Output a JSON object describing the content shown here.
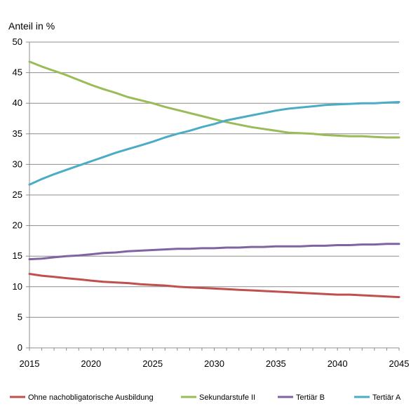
{
  "chart_data": {
    "type": "line",
    "title": "",
    "xlabel": "",
    "ylabel": "Anteil in %",
    "xlim": [
      2015,
      2045
    ],
    "ylim": [
      0,
      50
    ],
    "x_ticks": [
      2015,
      2020,
      2025,
      2030,
      2035,
      2040,
      2045
    ],
    "y_ticks": [
      0,
      5,
      10,
      15,
      20,
      25,
      30,
      35,
      40,
      45,
      50
    ],
    "grid": "horizontal",
    "legend_position": "bottom",
    "x": [
      2015,
      2016,
      2017,
      2018,
      2019,
      2020,
      2021,
      2022,
      2023,
      2024,
      2025,
      2026,
      2027,
      2028,
      2029,
      2030,
      2031,
      2032,
      2033,
      2034,
      2035,
      2036,
      2037,
      2038,
      2039,
      2040,
      2041,
      2042,
      2043,
      2044,
      2045
    ],
    "series": [
      {
        "name": "Ohne nachobligatorische Ausbildung",
        "color": "#c0504d",
        "values": [
          12.1,
          11.8,
          11.6,
          11.4,
          11.2,
          11.0,
          10.8,
          10.7,
          10.6,
          10.4,
          10.3,
          10.2,
          10.0,
          9.9,
          9.8,
          9.7,
          9.6,
          9.5,
          9.4,
          9.3,
          9.2,
          9.1,
          9.0,
          8.9,
          8.8,
          8.7,
          8.7,
          8.6,
          8.5,
          8.4,
          8.3
        ]
      },
      {
        "name": "Sekundarstufe II",
        "color": "#9bbb59",
        "values": [
          46.8,
          46.0,
          45.3,
          44.6,
          43.8,
          43.0,
          42.3,
          41.7,
          41.0,
          40.5,
          40.0,
          39.4,
          38.9,
          38.4,
          37.9,
          37.4,
          36.9,
          36.5,
          36.1,
          35.8,
          35.5,
          35.2,
          35.1,
          35.0,
          34.8,
          34.7,
          34.6,
          34.6,
          34.5,
          34.4,
          34.4
        ]
      },
      {
        "name": "Tertiär B",
        "color": "#8064a2",
        "values": [
          14.5,
          14.6,
          14.8,
          15.0,
          15.1,
          15.3,
          15.5,
          15.6,
          15.8,
          15.9,
          16.0,
          16.1,
          16.2,
          16.2,
          16.3,
          16.3,
          16.4,
          16.4,
          16.5,
          16.5,
          16.6,
          16.6,
          16.6,
          16.7,
          16.7,
          16.8,
          16.8,
          16.9,
          16.9,
          17.0,
          17.0
        ]
      },
      {
        "name": "Tertiär A",
        "color": "#4bacc6",
        "values": [
          26.7,
          27.6,
          28.4,
          29.1,
          29.8,
          30.5,
          31.2,
          31.9,
          32.5,
          33.1,
          33.7,
          34.4,
          35.0,
          35.5,
          36.1,
          36.6,
          37.2,
          37.6,
          38.0,
          38.4,
          38.8,
          39.1,
          39.3,
          39.5,
          39.7,
          39.8,
          39.9,
          40.0,
          40.0,
          40.1,
          40.2
        ]
      }
    ]
  }
}
